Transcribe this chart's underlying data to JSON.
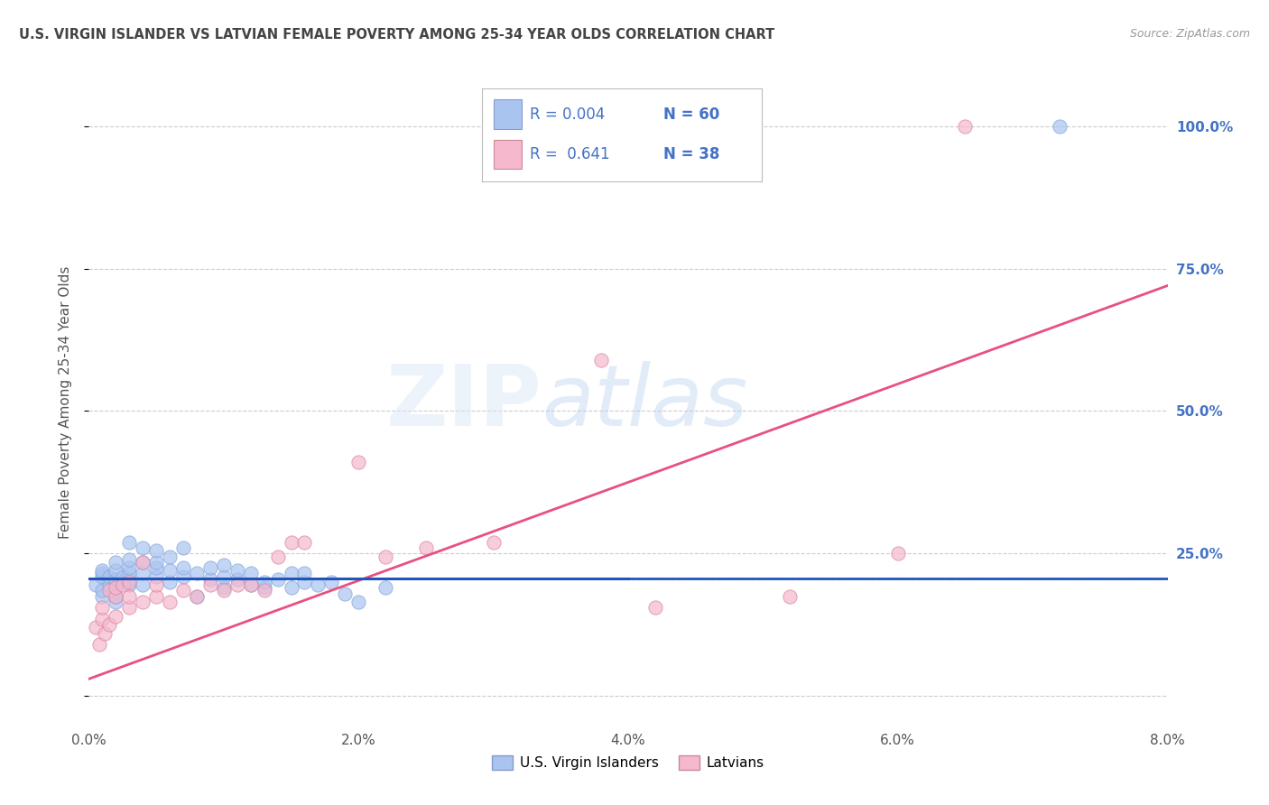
{
  "title": "U.S. VIRGIN ISLANDER VS LATVIAN FEMALE POVERTY AMONG 25-34 YEAR OLDS CORRELATION CHART",
  "source": "Source: ZipAtlas.com",
  "xlabel_ticks": [
    "0.0%",
    "2.0%",
    "4.0%",
    "6.0%",
    "8.0%"
  ],
  "xlabel_vals": [
    0.0,
    0.02,
    0.04,
    0.06,
    0.08
  ],
  "ylabel": "Female Poverty Among 25-34 Year Olds",
  "xlim": [
    0.0,
    0.08
  ],
  "ylim": [
    -0.05,
    1.08
  ],
  "blue_scatter_color": "#aac4f0",
  "pink_scatter_color": "#f5b8cc",
  "blue_line_color": "#2255bb",
  "pink_line_color": "#e85080",
  "blue_hline_color": "#2255bb",
  "pink_hline_color": "#aaccee",
  "grid_color": "#cccccc",
  "bg_color": "#ffffff",
  "title_color": "#444444",
  "axis_label_color": "#555555",
  "right_tick_color": "#4472c4",
  "blue_scatter_x": [
    0.0005,
    0.001,
    0.001,
    0.001,
    0.001,
    0.001,
    0.0015,
    0.0015,
    0.002,
    0.002,
    0.002,
    0.002,
    0.002,
    0.002,
    0.002,
    0.0025,
    0.003,
    0.003,
    0.003,
    0.003,
    0.003,
    0.003,
    0.004,
    0.004,
    0.004,
    0.004,
    0.005,
    0.005,
    0.005,
    0.005,
    0.006,
    0.006,
    0.006,
    0.007,
    0.007,
    0.007,
    0.008,
    0.008,
    0.009,
    0.009,
    0.01,
    0.01,
    0.01,
    0.011,
    0.011,
    0.012,
    0.012,
    0.013,
    0.013,
    0.014,
    0.015,
    0.015,
    0.016,
    0.016,
    0.017,
    0.018,
    0.019,
    0.02,
    0.022,
    0.072
  ],
  "blue_scatter_y": [
    0.195,
    0.175,
    0.21,
    0.215,
    0.22,
    0.185,
    0.195,
    0.21,
    0.165,
    0.175,
    0.19,
    0.2,
    0.205,
    0.22,
    0.235,
    0.21,
    0.195,
    0.205,
    0.215,
    0.225,
    0.24,
    0.27,
    0.195,
    0.215,
    0.235,
    0.26,
    0.21,
    0.225,
    0.235,
    0.255,
    0.2,
    0.22,
    0.245,
    0.21,
    0.225,
    0.26,
    0.175,
    0.215,
    0.205,
    0.225,
    0.19,
    0.21,
    0.23,
    0.205,
    0.22,
    0.195,
    0.215,
    0.19,
    0.2,
    0.205,
    0.19,
    0.215,
    0.2,
    0.215,
    0.195,
    0.2,
    0.18,
    0.165,
    0.19,
    1.0
  ],
  "pink_scatter_x": [
    0.0005,
    0.0008,
    0.001,
    0.001,
    0.0012,
    0.0015,
    0.0015,
    0.002,
    0.002,
    0.002,
    0.0025,
    0.003,
    0.003,
    0.003,
    0.004,
    0.004,
    0.005,
    0.005,
    0.006,
    0.007,
    0.008,
    0.009,
    0.01,
    0.011,
    0.012,
    0.013,
    0.014,
    0.015,
    0.016,
    0.02,
    0.022,
    0.025,
    0.03,
    0.038,
    0.042,
    0.052,
    0.06,
    0.065
  ],
  "pink_scatter_y": [
    0.12,
    0.09,
    0.135,
    0.155,
    0.11,
    0.125,
    0.185,
    0.14,
    0.175,
    0.19,
    0.195,
    0.155,
    0.175,
    0.2,
    0.165,
    0.235,
    0.175,
    0.195,
    0.165,
    0.185,
    0.175,
    0.195,
    0.185,
    0.195,
    0.195,
    0.185,
    0.245,
    0.27,
    0.27,
    0.41,
    0.245,
    0.26,
    0.27,
    0.59,
    0.155,
    0.175,
    0.25,
    1.0
  ],
  "blue_line_x": [
    0.0,
    0.08
  ],
  "blue_line_y": [
    0.207,
    0.207
  ],
  "pink_line_x": [
    0.0,
    0.08
  ],
  "pink_line_y": [
    0.03,
    0.72
  ],
  "blue_hline_y": 0.207,
  "blue_hline_x_end": 0.04,
  "pink_hline_y": 0.207,
  "right_ytick_vals": [
    0.0,
    0.25,
    0.5,
    0.75,
    1.0
  ],
  "right_ytick_labels": [
    "",
    "25.0%",
    "50.0%",
    "75.0%",
    "100.0%"
  ],
  "legend_text_color": "#4472c4",
  "legend_r_black": "R = ",
  "legend_r_blue1": "0.004",
  "legend_n1": "N = 60",
  "legend_r_blue2": "0.641",
  "legend_n2": "N = 38",
  "legend_label_blue": "U.S. Virgin Islanders",
  "legend_label_pink": "Latvians"
}
